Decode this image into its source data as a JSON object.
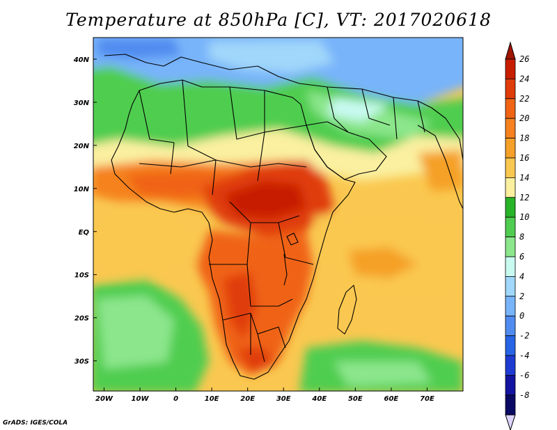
{
  "title": "Temperature at 850hPa [C], VT: 2017020618",
  "footer": "GrADS: IGES/COLA",
  "map": {
    "lon_range": [
      -23,
      80
    ],
    "lat_range": [
      -37,
      45
    ],
    "x_ticks": [
      {
        "lon": -20,
        "label": "20W"
      },
      {
        "lon": -10,
        "label": "10W"
      },
      {
        "lon": 0,
        "label": "0"
      },
      {
        "lon": 10,
        "label": "10E"
      },
      {
        "lon": 20,
        "label": "20E"
      },
      {
        "lon": 30,
        "label": "30E"
      },
      {
        "lon": 40,
        "label": "40E"
      },
      {
        "lon": 50,
        "label": "50E"
      },
      {
        "lon": 60,
        "label": "60E"
      },
      {
        "lon": 70,
        "label": "70E"
      }
    ],
    "y_ticks": [
      {
        "lat": 40,
        "label": "40N"
      },
      {
        "lat": 30,
        "label": "30N"
      },
      {
        "lat": 20,
        "label": "20N"
      },
      {
        "lat": 10,
        "label": "10N"
      },
      {
        "lat": 0,
        "label": "EQ"
      },
      {
        "lat": -10,
        "label": "10S"
      },
      {
        "lat": -20,
        "label": "20S"
      },
      {
        "lat": -30,
        "label": "30S"
      }
    ]
  },
  "colorbar": {
    "labels": [
      "26",
      "24",
      "22",
      "20",
      "18",
      "16",
      "14",
      "12",
      "10",
      "8",
      "6",
      "4",
      "2",
      "0",
      "-2",
      "-4",
      "-6",
      "-8"
    ],
    "colors_top_to_bottom": [
      "#c81e00",
      "#e03c0a",
      "#f06414",
      "#f5821e",
      "#f5a028",
      "#fac850",
      "#faf0a0",
      "#28b428",
      "#50cd50",
      "#8ce68c",
      "#c8faf0",
      "#a0d7fa",
      "#78b4fa",
      "#508cf0",
      "#2864e6",
      "#1e3cd2",
      "#1414a0",
      "#0a0a64"
    ],
    "top_arrow_color": "#a01400",
    "bottom_arrow_color": "#dcd2fa"
  }
}
